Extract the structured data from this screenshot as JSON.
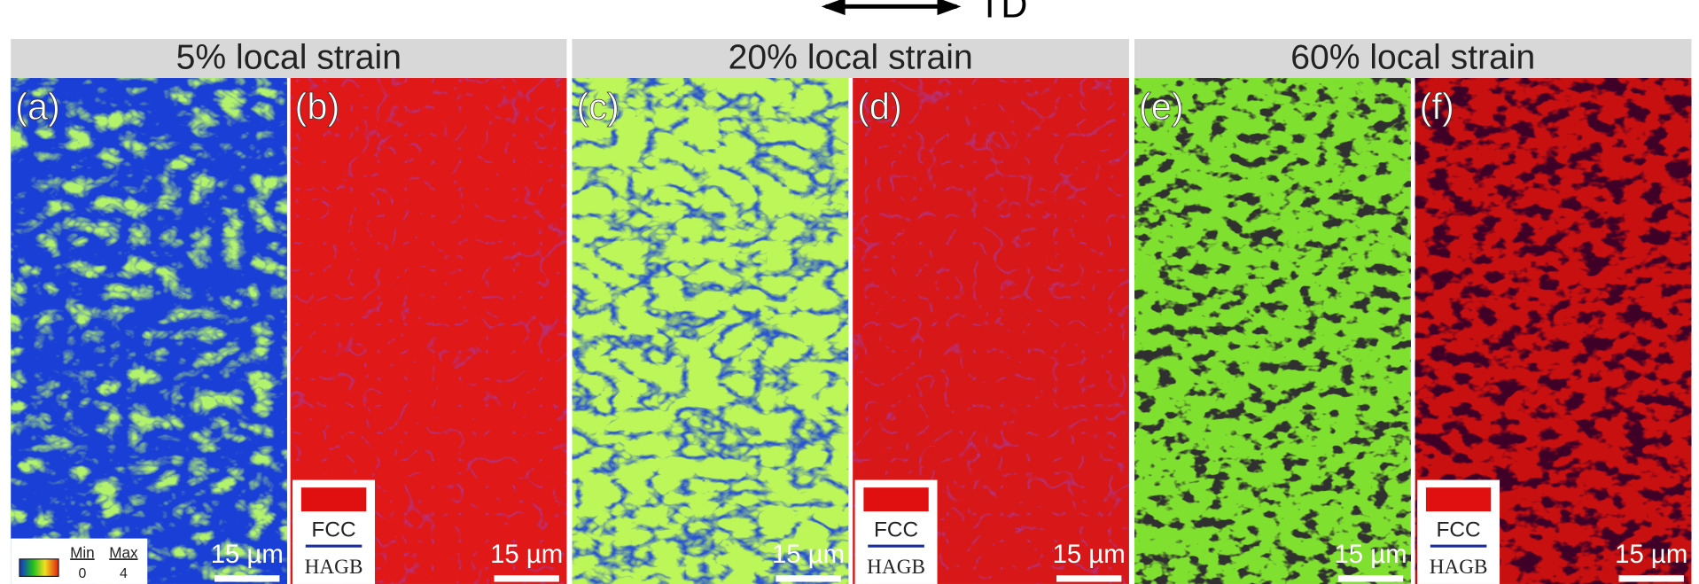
{
  "header": {
    "direction": "TD"
  },
  "groups": [
    {
      "title": "5% local strain"
    },
    {
      "title": "20% local strain"
    },
    {
      "title": "60% local strain"
    }
  ],
  "panels": [
    {
      "label": "(a)",
      "scale_bar": "15 µm"
    },
    {
      "label": "(b)",
      "scale_bar": "15 µm"
    },
    {
      "label": "(c)",
      "scale_bar": "15 µm"
    },
    {
      "label": "(d)",
      "scale_bar": "15 µm"
    },
    {
      "label": "(e)",
      "scale_bar": "15 µm"
    },
    {
      "label": "(f)",
      "scale_bar": "15 µm"
    }
  ],
  "legends": {
    "kam": {
      "min": "Min",
      "max": "Max",
      "min_value": "0",
      "max_value": "4"
    },
    "phase": {
      "phase": "FCC",
      "boundary": "HAGB"
    }
  }
}
